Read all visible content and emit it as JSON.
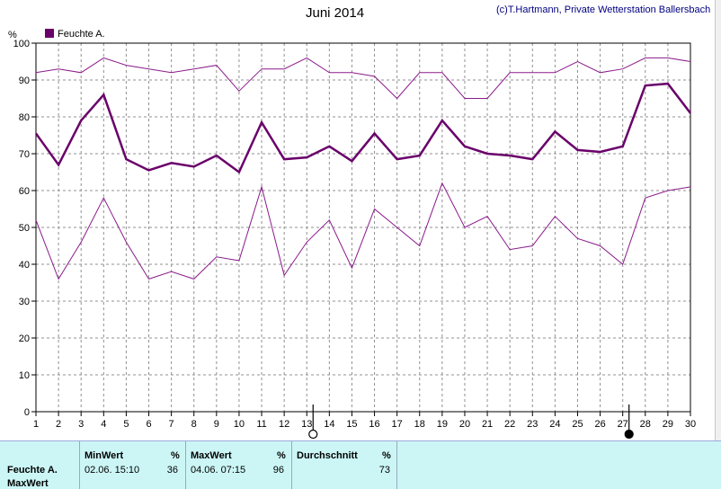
{
  "header": {
    "title": "Juni 2014",
    "credit": "(c)T.Hartmann, Private Wetterstation Ballersbach"
  },
  "chart_data": {
    "type": "line",
    "y_unit": "%",
    "ylim": [
      0,
      100
    ],
    "yticks": [
      0,
      10,
      20,
      30,
      40,
      50,
      60,
      70,
      80,
      90,
      100
    ],
    "x": [
      1,
      2,
      3,
      4,
      5,
      6,
      7,
      8,
      9,
      10,
      11,
      12,
      13,
      14,
      15,
      16,
      17,
      18,
      19,
      20,
      21,
      22,
      23,
      24,
      25,
      26,
      27,
      28,
      29,
      30
    ],
    "grid": true,
    "legend_position": "top-left",
    "series": [
      {
        "name": "Feuchte A.",
        "role": "avg",
        "color": "#6a006a",
        "values": [
          75.5,
          67,
          79,
          86,
          68.5,
          65.5,
          67.5,
          66.5,
          69.5,
          65,
          78.5,
          68.5,
          69,
          72,
          68,
          75.5,
          68.5,
          69.5,
          79,
          72,
          70,
          69.5,
          68.5,
          76,
          71,
          70.5,
          72,
          88.5,
          89,
          81
        ]
      },
      {
        "role": "max",
        "color": "#8b1a8b",
        "values": [
          92,
          93,
          92,
          96,
          94,
          93,
          92,
          93,
          94,
          87,
          93,
          93,
          96,
          92,
          92,
          91,
          85,
          92,
          92,
          85,
          85,
          92,
          92,
          92,
          95,
          92,
          93,
          96,
          96,
          95
        ]
      },
      {
        "role": "min",
        "color": "#8b1a8b",
        "values": [
          52,
          36,
          46,
          58,
          46,
          36,
          38,
          36,
          42,
          41,
          61,
          37,
          46,
          52,
          39,
          55,
          50,
          45,
          62,
          50,
          53,
          44,
          45,
          53,
          47,
          45,
          40,
          58,
          60,
          61
        ]
      }
    ],
    "markers": [
      {
        "x": 13,
        "symbol": "open-circle"
      },
      {
        "x": 27,
        "symbol": "filled-circle"
      }
    ]
  },
  "stats": {
    "row_label": "Feuchte A.",
    "row_label2": "MaxWert",
    "min": {
      "header": "MinWert",
      "unit": "%",
      "time": "02.06.  15:10",
      "value": "36"
    },
    "max": {
      "header": "MaxWert",
      "unit": "%",
      "time": "04.06.  07:15",
      "value": "96"
    },
    "avg": {
      "header": "Durchschnitt",
      "unit": "%",
      "value": "73"
    }
  }
}
